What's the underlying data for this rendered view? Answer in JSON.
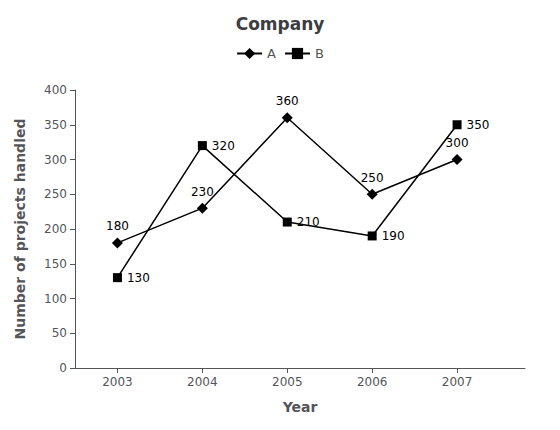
{
  "chart_data": {
    "type": "line",
    "title": "Company",
    "x_label": "Year",
    "y_label": "Number of projects handled",
    "x": [
      2003,
      2004,
      2005,
      2006,
      2007
    ],
    "series": [
      {
        "name": "A",
        "color": "#000000",
        "marker": "diamond",
        "values": [
          180,
          230,
          360,
          250,
          300
        ]
      },
      {
        "name": "B",
        "color": "#000000",
        "marker": "square",
        "values": [
          130,
          320,
          210,
          190,
          350
        ]
      }
    ],
    "xlim": [
      2002.5,
      2007.8
    ],
    "xticks": [
      2003,
      2004,
      2005,
      2006,
      2007
    ],
    "ylim": [
      0,
      400
    ],
    "yticks": [
      0,
      50,
      100,
      150,
      200,
      250,
      300,
      350,
      400
    ],
    "grid": false,
    "legend": "top",
    "data_labels": true
  }
}
